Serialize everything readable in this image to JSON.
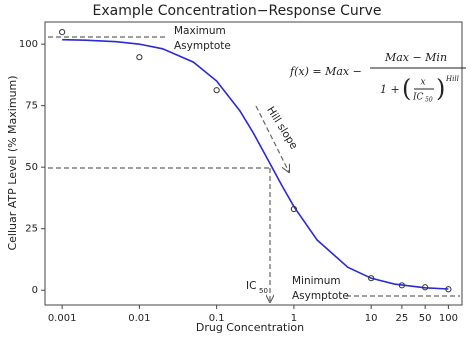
{
  "chart_data": {
    "type": "scatter",
    "title": "Example Concentration−Response Curve",
    "x_label": "Drug Concentration",
    "y_label": "Celluar ATP Level (% Maximum)",
    "x_scale": "log",
    "grid": false,
    "xlim": [
      0.0006,
      150
    ],
    "xticks": [
      0.001,
      0.01,
      0.1,
      1,
      10,
      25,
      50,
      100
    ],
    "ylim": [
      -6,
      109
    ],
    "yticks": [
      0,
      25,
      50,
      75,
      100
    ],
    "series": [
      {
        "type": "scatter",
        "color": "#333333",
        "x": [
          0.001,
          0.01,
          0.1,
          1,
          10,
          25,
          50,
          100
        ],
        "values": [
          104.9,
          94.7,
          81.3,
          33,
          4.9,
          2,
          1.2,
          0.4
        ]
      },
      {
        "type": "line",
        "color": "#2a2ad8",
        "x": [
          0.001,
          0.002,
          0.005,
          0.01,
          0.02,
          0.05,
          0.1,
          0.2,
          0.3,
          0.5,
          0.7,
          1,
          2,
          5,
          10,
          20,
          50,
          100
        ],
        "values": [
          101.8,
          101.6,
          101.0,
          100.0,
          98.1,
          92.7,
          85.0,
          72.9,
          63.8,
          51.0,
          42.5,
          34.0,
          20.4,
          9.3,
          4.9,
          2.5,
          1.0,
          0.5
        ]
      }
    ],
    "annotations": {
      "max_asymptote": [
        "Maximum",
        "Asymptote"
      ],
      "min_asymptote": [
        "Minimum",
        "Asymptote"
      ],
      "hill_slope": "Hill slope",
      "ic50": {
        "main": "IC",
        "sub": "50"
      },
      "formula": {
        "lhs": "f(x) = Max −",
        "numerator": "Max − Min",
        "one_plus": "1 +",
        "x": "x",
        "ic": "IC",
        "ic_sub": "50",
        "exponent": "Hill"
      }
    }
  }
}
